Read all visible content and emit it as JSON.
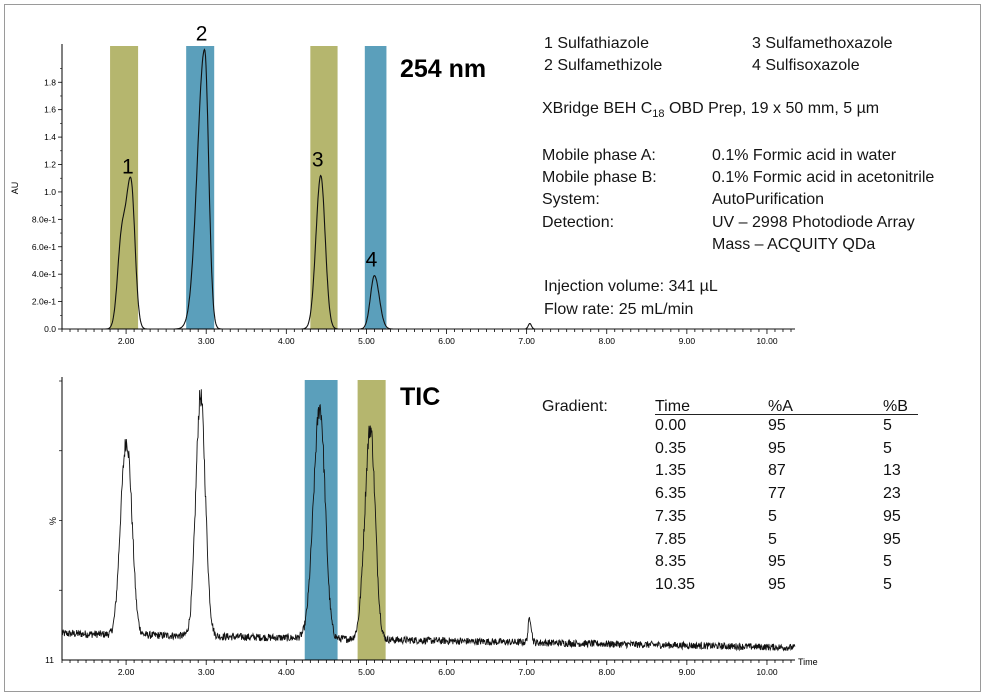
{
  "chart_data": [
    {
      "type": "line",
      "title": "254 nm",
      "ylabel": "AU",
      "xlabel": "",
      "xlim": [
        1.2,
        10.35
      ],
      "ylim": [
        0,
        2.05
      ],
      "x_ticks": [
        "2.00",
        "3.00",
        "4.00",
        "5.00",
        "6.00",
        "7.00",
        "8.00",
        "9.00",
        "10.00"
      ],
      "y_ticks": [
        "0.0",
        "2.0e-1",
        "4.0e-1",
        "6.0e-1",
        "8.0e-1",
        "1.0",
        "1.2",
        "1.4",
        "1.6",
        "1.8"
      ],
      "highlights": [
        {
          "from": 1.8,
          "to": 2.15,
          "color": "#b5b66e"
        },
        {
          "from": 2.75,
          "to": 3.1,
          "color": "#5b9fbb"
        },
        {
          "from": 4.3,
          "to": 4.64,
          "color": "#b5b66e"
        },
        {
          "from": 4.98,
          "to": 5.25,
          "color": "#5b9fbb"
        }
      ],
      "peaks": [
        {
          "label": "1",
          "rt": 2.06,
          "height": 1.07
        },
        {
          "label": "2",
          "rt": 2.98,
          "height": 2.04
        },
        {
          "label": "3",
          "rt": 4.43,
          "height": 1.12
        },
        {
          "label": "4",
          "rt": 5.1,
          "height": 0.39
        },
        {
          "label": "",
          "rt": 7.04,
          "height": 0.04
        }
      ]
    },
    {
      "type": "line",
      "title": "TIC",
      "ylabel": "%",
      "xlabel": "Time",
      "xlim": [
        1.2,
        10.35
      ],
      "ylim": [
        0,
        100
      ],
      "y_ticks": [
        "11"
      ],
      "x_ticks": [
        "2.00",
        "3.00",
        "4.00",
        "5.00",
        "6.00",
        "7.00",
        "8.00",
        "9.00",
        "10.00"
      ],
      "highlights": [
        {
          "from": 4.23,
          "to": 4.64,
          "color": "#5b9fbb"
        },
        {
          "from": 4.89,
          "to": 5.24,
          "color": "#b5b66e"
        }
      ],
      "peaks": [
        {
          "label": "",
          "rt": 2.02,
          "height": 62
        },
        {
          "label": "",
          "rt": 2.93,
          "height": 86
        },
        {
          "label": "",
          "rt": 4.42,
          "height": 83
        },
        {
          "label": "",
          "rt": 5.05,
          "height": 76
        },
        {
          "label": "",
          "rt": 7.04,
          "height": 9
        }
      ]
    }
  ],
  "compounds": [
    {
      "num": "1",
      "name": "Sulfathiazole"
    },
    {
      "num": "2",
      "name": "Sulfamethizole"
    },
    {
      "num": "3",
      "name": "Sulfamethoxazole"
    },
    {
      "num": "4",
      "name": "Sulfisoxazole"
    }
  ],
  "column": {
    "prefix": "XBridge BEH C",
    "sub": "18",
    "suffix": " OBD Prep, 19 x 50 mm, 5 µm"
  },
  "conditions": [
    {
      "label": "Mobile phase A:",
      "value": "0.1% Formic acid in water"
    },
    {
      "label": "Mobile phase B:",
      "value": "0.1% Formic acid in acetonitrile"
    },
    {
      "label": "System:",
      "value": "AutoPurification"
    },
    {
      "label": "Detection:",
      "value": "UV – 2998 Photodiode Array"
    },
    {
      "label": "",
      "value": "Mass – ACQUITY QDa"
    }
  ],
  "injection": "Injection volume: 341 µL",
  "flow": "Flow rate: 25 mL/min",
  "gradient": {
    "label": "Gradient:",
    "headers": [
      "Time",
      "%A",
      "%B"
    ],
    "rows": [
      [
        "0.00",
        "95",
        "5"
      ],
      [
        "0.35",
        "95",
        "5"
      ],
      [
        "1.35",
        "87",
        "13"
      ],
      [
        "6.35",
        "77",
        "23"
      ],
      [
        "7.35",
        "5",
        "95"
      ],
      [
        "7.85",
        "5",
        "95"
      ],
      [
        "8.35",
        "95",
        "5"
      ],
      [
        "10.35",
        "95",
        "5"
      ]
    ]
  }
}
